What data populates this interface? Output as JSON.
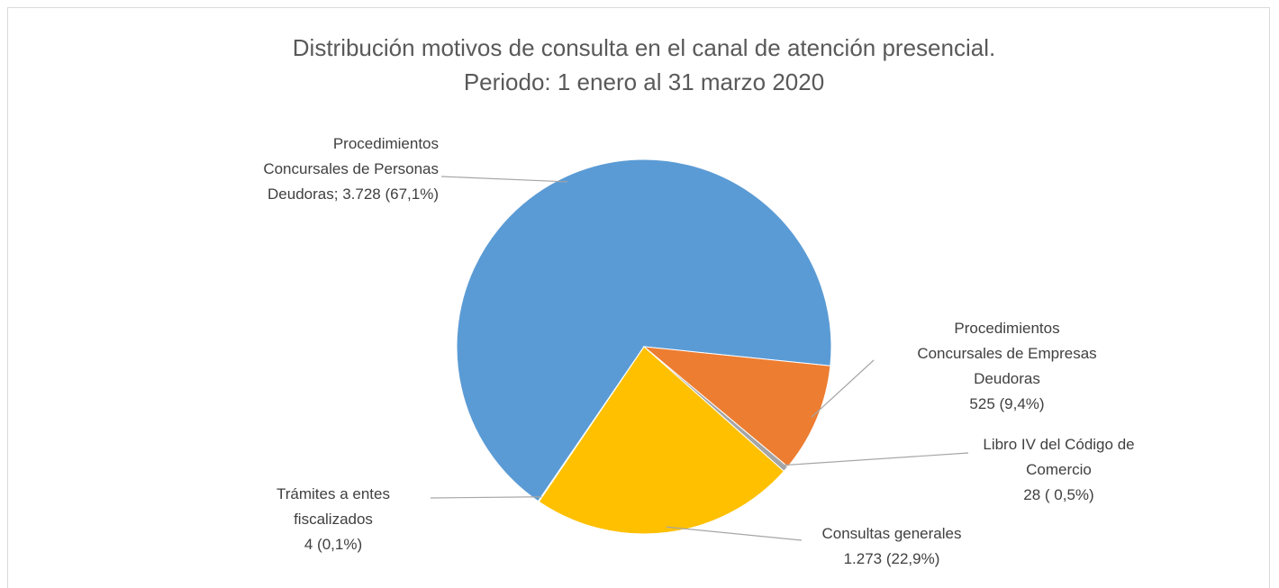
{
  "chart_data": {
    "type": "pie",
    "title": "Distribución motivos de consulta en el canal de atención presencial.",
    "subtitle": "Periodo: 1 enero al 31 marzo 2020",
    "categories": [
      "Procedimientos Concursales de Personas Deudoras;",
      "Procedimientos Concursales de Empresas Deudoras",
      "Libro IV del Código de Comercio",
      "Consultas generales",
      "Trámites a entes fiscalizados"
    ],
    "values": [
      3728,
      525,
      28,
      1273,
      4
    ],
    "value_labels": [
      "3.728 (67,1%)",
      "525 (9,4%)",
      "28 ( 0,5%)",
      "1.273 (22,9%)",
      "4 (0,1%)"
    ],
    "colors": [
      "#5b9bd5",
      "#ed7d31",
      "#a5a5a5",
      "#ffc000",
      "#4472c4"
    ]
  }
}
